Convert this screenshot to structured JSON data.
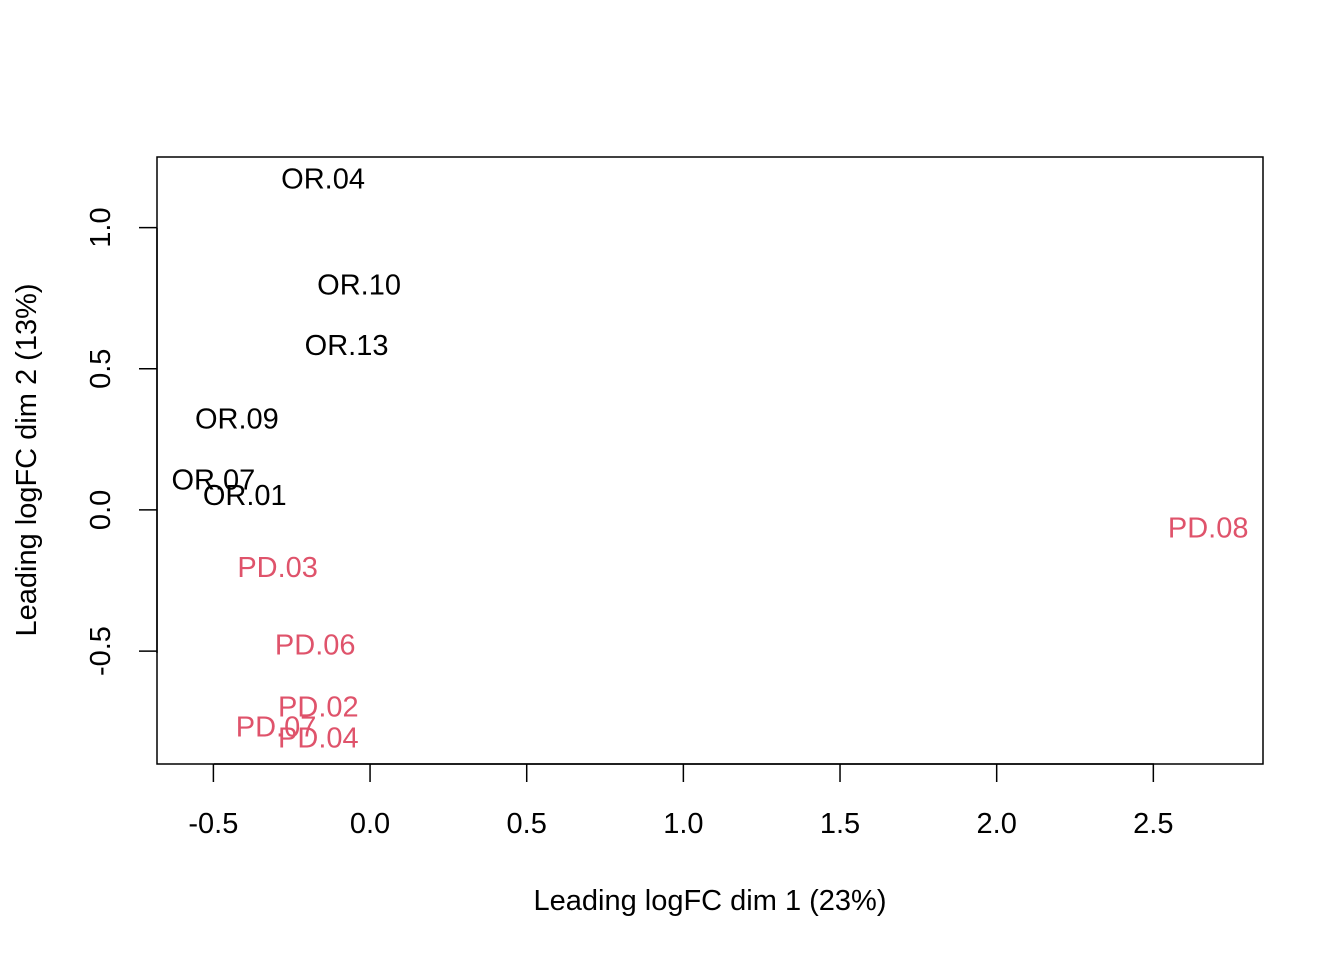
{
  "chart_data": {
    "type": "scatter",
    "title": "",
    "xlabel": "Leading logFC dim 1 (23%)",
    "ylabel": "Leading logFC dim 2 (13%)",
    "xlim": [
      -0.68,
      2.85
    ],
    "ylim": [
      -0.9,
      1.25
    ],
    "x_ticks": [
      -0.5,
      0.0,
      0.5,
      1.0,
      1.5,
      2.0,
      2.5
    ],
    "x_tick_labels": [
      "-0.5",
      "0.0",
      "0.5",
      "1.0",
      "1.5",
      "2.0",
      "2.5"
    ],
    "y_ticks": [
      -0.5,
      0.0,
      0.5,
      1.0
    ],
    "y_tick_labels": [
      "-0.5",
      "0.0",
      "0.5",
      "1.0"
    ],
    "grid": false,
    "legend": "none",
    "colors": {
      "OR": "#000000",
      "PD": "#DF536B"
    },
    "points": [
      {
        "label": "OR.04",
        "x": -0.15,
        "y": 1.17,
        "group": "OR"
      },
      {
        "label": "OR.10",
        "x": -0.035,
        "y": 0.795,
        "group": "OR"
      },
      {
        "label": "OR.13",
        "x": -0.075,
        "y": 0.58,
        "group": "OR"
      },
      {
        "label": "OR.09",
        "x": -0.425,
        "y": 0.32,
        "group": "OR"
      },
      {
        "label": "OR.07",
        "x": -0.5,
        "y": 0.105,
        "group": "OR"
      },
      {
        "label": "OR.01",
        "x": -0.4,
        "y": 0.05,
        "group": "OR"
      },
      {
        "label": "PD.08",
        "x": 2.675,
        "y": -0.065,
        "group": "PD"
      },
      {
        "label": "PD.03",
        "x": -0.295,
        "y": -0.205,
        "group": "PD"
      },
      {
        "label": "PD.06",
        "x": -0.175,
        "y": -0.48,
        "group": "PD"
      },
      {
        "label": "PD.02",
        "x": -0.165,
        "y": -0.7,
        "group": "PD"
      },
      {
        "label": "PD.07",
        "x": -0.3,
        "y": -0.77,
        "group": "PD"
      },
      {
        "label": "PD.04",
        "x": -0.165,
        "y": -0.81,
        "group": "PD"
      }
    ]
  }
}
